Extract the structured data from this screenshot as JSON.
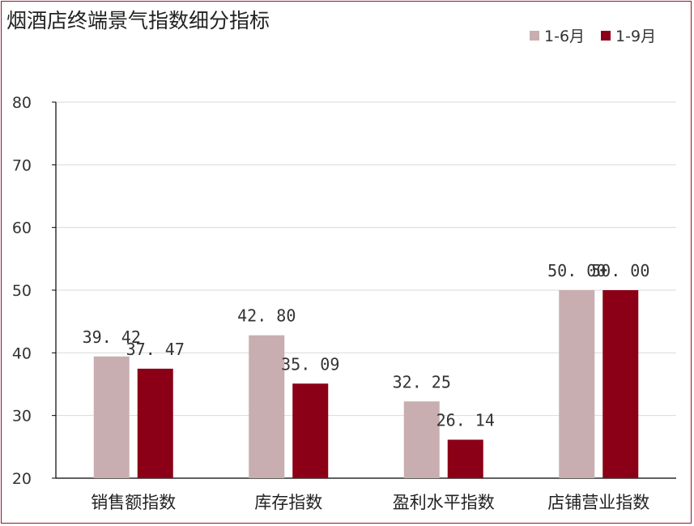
{
  "chart_data": {
    "type": "bar",
    "title": "烟酒店终端景气指数细分指标",
    "categories": [
      "销售额指数",
      "库存指数",
      "盈利水平指数",
      "店铺营业指数"
    ],
    "series": [
      {
        "name": "1-6月",
        "color": "#c8aeb0",
        "values": [
          39.42,
          42.8,
          32.25,
          50.0
        ],
        "labels": [
          "39. 42",
          "42. 80",
          "32. 25",
          "50. 00"
        ]
      },
      {
        "name": "1-9月",
        "color": "#8b0016",
        "values": [
          37.47,
          35.09,
          26.14,
          50.0
        ],
        "labels": [
          "37. 47",
          "35. 09",
          "26. 14",
          "50. 00"
        ]
      }
    ],
    "ylim": [
      20,
      80
    ],
    "yticks": [
      "20",
      "30",
      "40",
      "50",
      "60",
      "70",
      "80"
    ],
    "grid": true,
    "legend": "top-right"
  }
}
